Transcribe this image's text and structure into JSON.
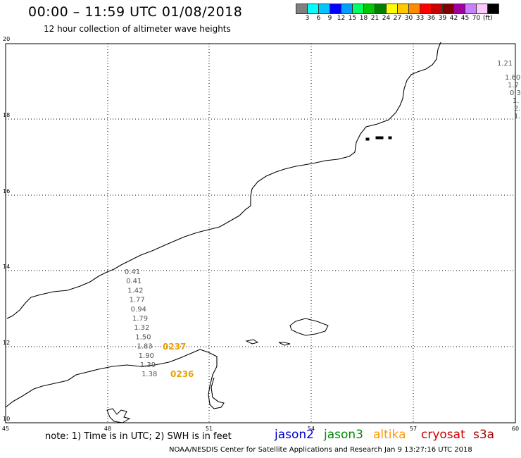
{
  "header": {
    "title": "00:00 – 11:59 UTC 01/08/2018",
    "subtitle": "12 hour collection of altimeter wave heights"
  },
  "colorbar": {
    "colors": [
      "#808080",
      "#00ffff",
      "#00c8ff",
      "#0000ff",
      "#00a0ff",
      "#00ff66",
      "#00c800",
      "#008000",
      "#ffff00",
      "#ffc800",
      "#ff8c00",
      "#ff0000",
      "#c80000",
      "#800000",
      "#a000a0",
      "#c880ff",
      "#ffc8ff",
      "#000000"
    ],
    "labels": [
      "3",
      "6",
      "9",
      "12",
      "15",
      "18",
      "21",
      "24",
      "27",
      "30",
      "33",
      "36",
      "39",
      "42",
      "45",
      "70"
    ],
    "unit": "(ft)"
  },
  "map": {
    "x_ticks": [
      "45",
      "48",
      "51",
      "54",
      "57",
      "60"
    ],
    "y_ticks": [
      "20",
      "18",
      "16",
      "14",
      "12",
      "10"
    ],
    "swh_track": [
      "0.41",
      "0.41",
      "1.42",
      "1.77",
      "0.94",
      "1.79",
      "1.32",
      "1.50",
      "1.83",
      "1.90",
      "1.39",
      "1.38"
    ],
    "swh_track_last_color": "#40c8e0",
    "right_edge_values": [
      "1.21",
      "1.60",
      "1.7",
      "0.3",
      "1.",
      "2.",
      "1."
    ],
    "time_labels": [
      "0237",
      "0236"
    ],
    "time_label_color": "#e8a000"
  },
  "footer": {
    "note": "note: 1) Time is in UTC; 2) SWH is in feet",
    "satellites": [
      {
        "name": "jason2",
        "color": "#0000cc"
      },
      {
        "name": "jason3",
        "color": "#008800"
      },
      {
        "name": "altika",
        "color": "#ff9900"
      },
      {
        "name": "cryosat",
        "color": "#cc0000"
      },
      {
        "name": "s3a",
        "color": "#aa0000"
      }
    ],
    "credit": "NOAA/NESDIS Center for Satellite Applications and Research   Jan  9 13:27:16 UTC 2018"
  }
}
